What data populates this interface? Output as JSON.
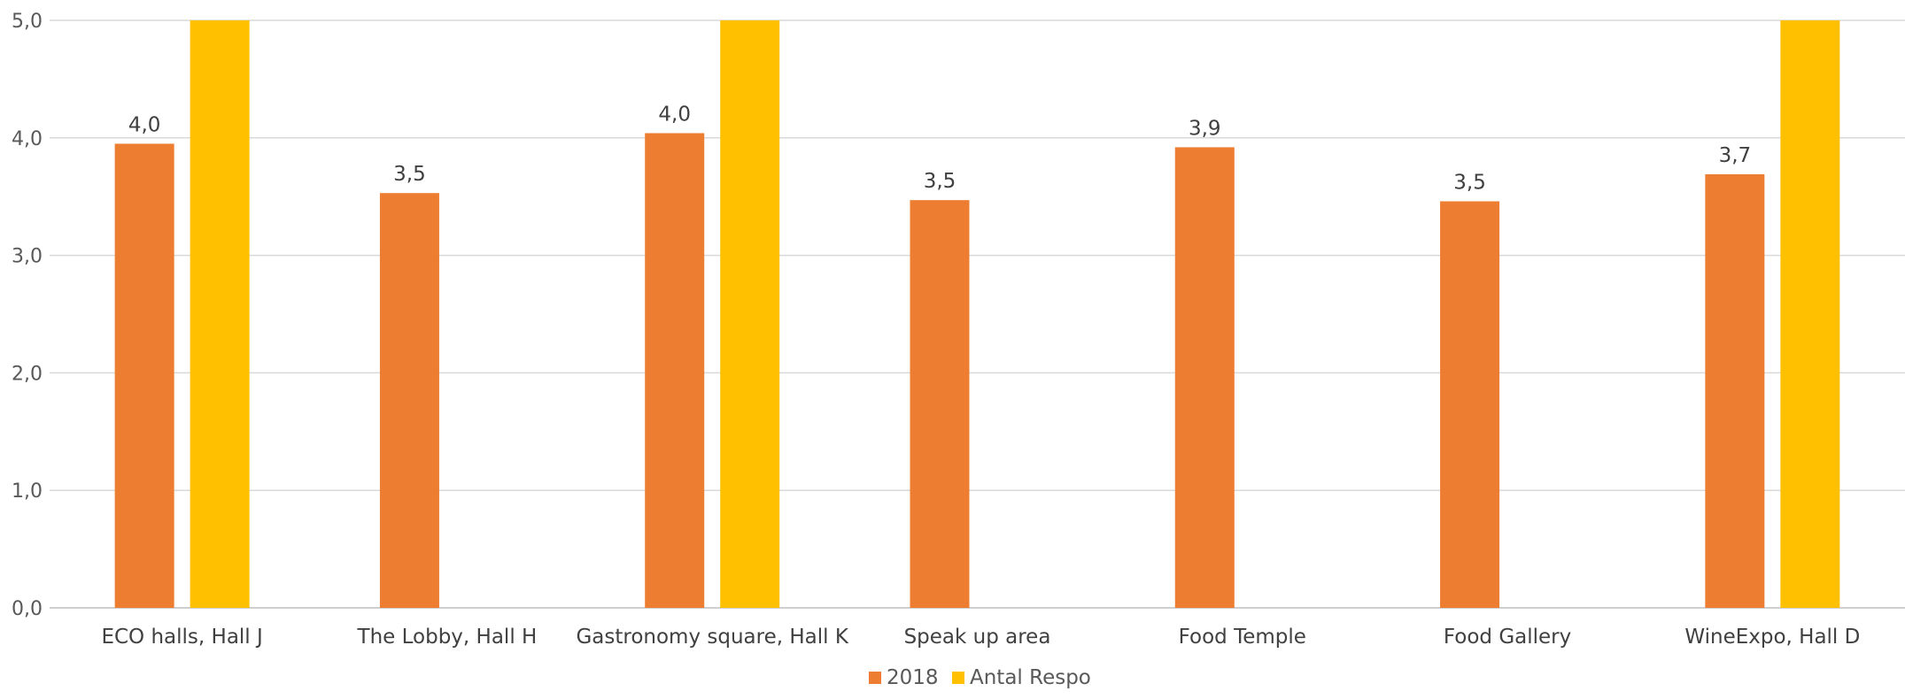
{
  "chart_data": {
    "type": "bar",
    "title": "",
    "xlabel": "",
    "ylabel": "",
    "ylim": [
      0,
      5
    ],
    "yticks": [
      "0,0",
      "1,0",
      "2,0",
      "3,0",
      "4,0",
      "5,0"
    ],
    "grid": true,
    "legend_position": "bottom",
    "categories": [
      "ECO halls, Hall J",
      "The Lobby, Hall H",
      "Gastronomy square, Hall K",
      "Speak up area",
      "Food Temple",
      "Food Gallery",
      "WineExpo, Hall D"
    ],
    "series": [
      {
        "name": "2018",
        "color": "#ED7D31",
        "values": [
          3.95,
          3.53,
          4.04,
          3.47,
          3.92,
          3.46,
          3.69
        ],
        "labels": [
          "4,0",
          "3,5",
          "4,0",
          "3,5",
          "3,9",
          "3,5",
          "3,7"
        ]
      },
      {
        "name": "Antal Respo",
        "color": "#FFC000",
        "values": [
          5.0,
          null,
          5.0,
          null,
          null,
          null,
          5.0
        ],
        "labels": [
          "",
          "",
          "",
          "",
          "",
          "",
          ""
        ]
      }
    ]
  }
}
